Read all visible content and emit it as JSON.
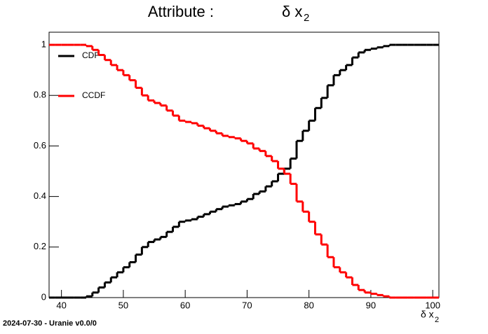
{
  "chart_data": {
    "type": "step",
    "title": "Attribute :",
    "title_symbol": "δ x",
    "title_subscript": "2",
    "x_label": "δ x",
    "x_label_subscript": "2",
    "footer": "2024-07-30 - Uranie v0.0/0",
    "x": [
      38,
      39,
      40,
      41,
      42,
      43,
      44,
      45,
      46,
      47,
      48,
      49,
      50,
      51,
      52,
      53,
      54,
      55,
      56,
      57,
      58,
      59,
      60,
      61,
      62,
      63,
      64,
      65,
      66,
      67,
      68,
      69,
      70,
      71,
      72,
      73,
      74,
      75,
      76,
      77,
      78,
      79,
      80,
      81,
      82,
      83,
      84,
      85,
      86,
      87,
      88,
      89,
      90,
      91,
      92,
      93,
      94,
      95,
      96,
      97,
      98,
      99,
      100,
      101
    ],
    "series": [
      {
        "name": "CDF",
        "color": "#000000",
        "values": [
          0,
          0,
          0,
          0,
          0,
          0,
          0.005,
          0.02,
          0.04,
          0.06,
          0.08,
          0.1,
          0.12,
          0.14,
          0.17,
          0.2,
          0.22,
          0.23,
          0.24,
          0.26,
          0.28,
          0.3,
          0.305,
          0.31,
          0.32,
          0.33,
          0.34,
          0.35,
          0.36,
          0.365,
          0.37,
          0.38,
          0.39,
          0.41,
          0.42,
          0.44,
          0.46,
          0.49,
          0.51,
          0.55,
          0.62,
          0.66,
          0.7,
          0.75,
          0.79,
          0.84,
          0.88,
          0.9,
          0.92,
          0.95,
          0.97,
          0.98,
          0.985,
          0.99,
          0.995,
          1,
          1,
          1,
          1,
          1,
          1,
          1,
          1,
          1
        ]
      },
      {
        "name": "CCDF",
        "color": "#ff0000",
        "values": [
          1,
          1,
          1,
          1,
          1,
          1,
          0.995,
          0.98,
          0.96,
          0.94,
          0.92,
          0.9,
          0.88,
          0.86,
          0.83,
          0.8,
          0.78,
          0.77,
          0.76,
          0.74,
          0.72,
          0.7,
          0.695,
          0.69,
          0.68,
          0.67,
          0.66,
          0.65,
          0.64,
          0.635,
          0.63,
          0.62,
          0.61,
          0.59,
          0.58,
          0.56,
          0.54,
          0.51,
          0.49,
          0.45,
          0.38,
          0.34,
          0.3,
          0.25,
          0.21,
          0.16,
          0.12,
          0.1,
          0.08,
          0.05,
          0.03,
          0.02,
          0.015,
          0.01,
          0.005,
          0,
          0,
          0,
          0,
          0,
          0,
          0,
          0,
          0
        ]
      }
    ],
    "xlim": [
      38,
      101
    ],
    "ylim": [
      0,
      1.05
    ],
    "xticks": [
      40,
      50,
      60,
      70,
      80,
      90,
      100
    ],
    "yticks": [
      0,
      0.2,
      0.4,
      0.6,
      0.8,
      1
    ],
    "legend": "top-left"
  }
}
